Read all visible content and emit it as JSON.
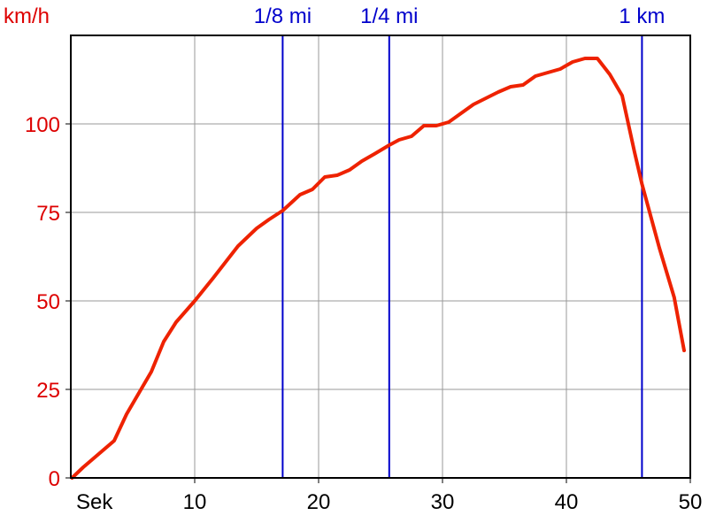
{
  "chart_data": {
    "type": "line",
    "xlabel": "Sek",
    "ylabel": "km/h",
    "xlim": [
      0,
      50
    ],
    "ylim": [
      0,
      125
    ],
    "x_ticks": [
      10,
      20,
      30,
      40,
      50
    ],
    "y_ticks": [
      0,
      25,
      50,
      75,
      100
    ],
    "grid": true,
    "markers": [
      {
        "label": "1/8 mi",
        "x": 17.1
      },
      {
        "label": "1/4 mi",
        "x": 25.7
      },
      {
        "label": "1 km",
        "x": 46.1
      }
    ],
    "series": [
      {
        "x": [
          0.1,
          1,
          2,
          3.5,
          4.5,
          6.5,
          7.5,
          8.5,
          10,
          11.5,
          13.5,
          15,
          16,
          17.1,
          18.5,
          19.5,
          20.5,
          21.5,
          22.5,
          23.5,
          24.5,
          25.7,
          26.5,
          27.5,
          28.5,
          29.5,
          30.5,
          32.5,
          34.5,
          35.5,
          36.5,
          37.5,
          39.5,
          40.5,
          41.5,
          42.5,
          43.5,
          44.5,
          45.5,
          46.1,
          47.5,
          48.7,
          49.5
        ],
        "y": [
          0,
          3,
          6,
          10.5,
          18,
          30,
          38.5,
          44,
          50,
          56.5,
          65.5,
          70.5,
          73,
          75.5,
          80,
          81.5,
          85,
          85.5,
          87,
          89.5,
          91.5,
          94,
          95.5,
          96.5,
          99.5,
          99.5,
          100.5,
          105.5,
          109,
          110.5,
          111,
          113.5,
          115.5,
          117.5,
          118.5,
          118.5,
          114,
          108,
          92,
          83,
          65,
          51,
          36
        ]
      }
    ],
    "colors": {
      "series": "#ee2200",
      "markers": "#0000cc",
      "y_axis_text": "#dd0000",
      "x_axis_text": "#000000",
      "grid": "#999999",
      "frame": "#000000"
    }
  }
}
